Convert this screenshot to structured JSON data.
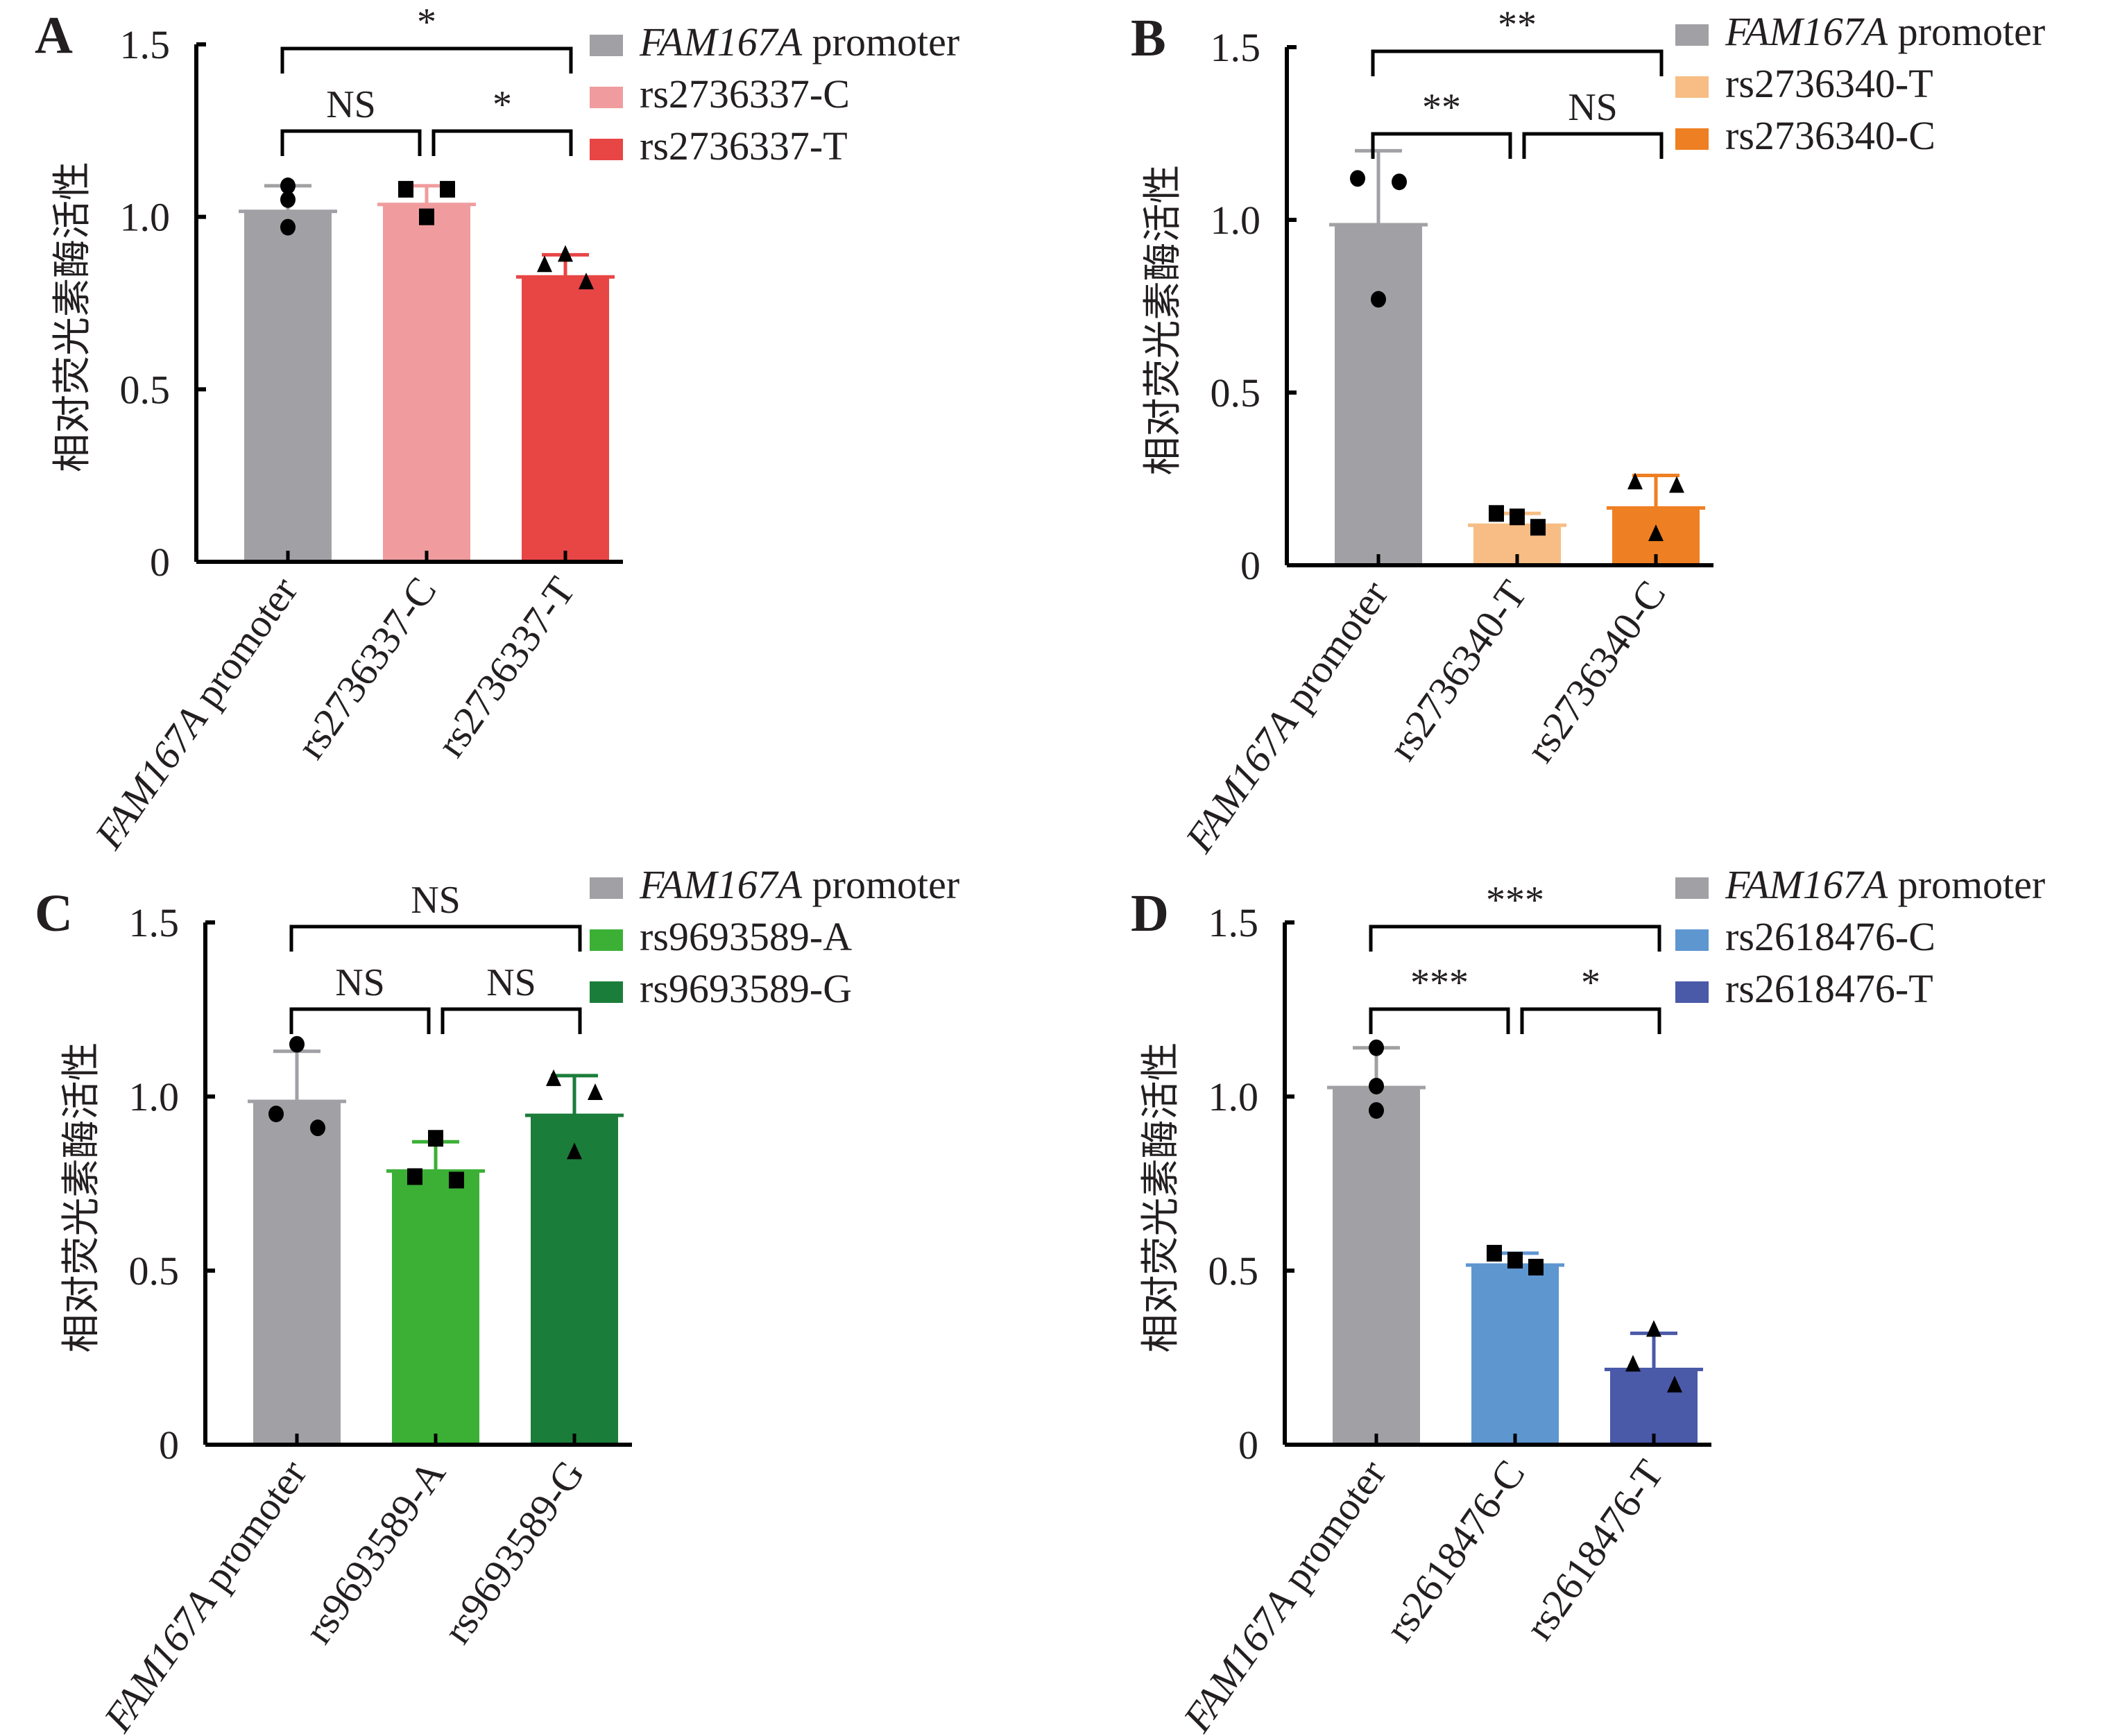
{
  "figure": {
    "y_axis_label": "相对荧光素酶活性"
  },
  "chart_data": [
    {
      "type": "bar",
      "panel": "A",
      "title": "",
      "ylabel": "相对荧光素酶活性",
      "xlabel": "",
      "ylim": [
        0,
        1.5
      ],
      "yticks": [
        "0",
        "0.5",
        "1.0",
        "1.5"
      ],
      "ytick_values": [
        0,
        0.5,
        1.0,
        1.5
      ],
      "legend_position": "top-right",
      "categories": [
        {
          "label_italic": "FAM167A",
          "label_rest": " promoter"
        },
        {
          "label_italic": "",
          "label_rest": "rs2736337-C"
        },
        {
          "label_italic": "",
          "label_rest": "rs2736337-T"
        }
      ],
      "colors": [
        "#a1a1a5",
        "#f09c9e",
        "#e84545"
      ],
      "values": [
        1.02,
        1.04,
        0.83
      ],
      "error_upper": [
        1.09,
        1.09,
        0.89
      ],
      "markers": [
        "circle",
        "square",
        "triangle"
      ],
      "points": [
        [
          1.09,
          1.05,
          0.97
        ],
        [
          1.08,
          1.08,
          1.0
        ],
        [
          0.89,
          0.86,
          0.81
        ]
      ],
      "point_offsets": [
        [
          0,
          0,
          0
        ],
        [
          -1,
          1,
          0
        ],
        [
          0,
          -1,
          1
        ]
      ],
      "comparisons": [
        {
          "from": 0,
          "to": 2,
          "label": "*",
          "level": 2
        },
        {
          "from": 0,
          "to": 1,
          "label": "NS",
          "level": 1
        },
        {
          "from": 1,
          "to": 2,
          "label": "*",
          "level": 1
        }
      ]
    },
    {
      "type": "bar",
      "panel": "B",
      "title": "",
      "ylabel": "相对荧光素酶活性",
      "xlabel": "",
      "ylim": [
        0,
        1.5
      ],
      "yticks": [
        "0",
        "0.5",
        "1.0",
        "1.5"
      ],
      "ytick_values": [
        0,
        0.5,
        1.0,
        1.5
      ],
      "legend_position": "top-right",
      "categories": [
        {
          "label_italic": "FAM167A",
          "label_rest": " promoter"
        },
        {
          "label_italic": "",
          "label_rest": "rs2736340-T"
        },
        {
          "label_italic": "",
          "label_rest": "rs2736340-C"
        }
      ],
      "colors": [
        "#a1a1a5",
        "#f7bd84",
        "#ee7f22"
      ],
      "values": [
        0.99,
        0.12,
        0.17
      ],
      "error_upper": [
        1.2,
        0.15,
        0.26
      ],
      "markers": [
        "circle",
        "square",
        "triangle"
      ],
      "points": [
        [
          1.12,
          1.11,
          0.77
        ],
        [
          0.15,
          0.14,
          0.11
        ],
        [
          0.24,
          0.23,
          0.09
        ]
      ],
      "point_offsets": [
        [
          -1,
          1,
          0
        ],
        [
          -1,
          0,
          1
        ],
        [
          -1,
          1,
          0
        ]
      ],
      "comparisons": [
        {
          "from": 0,
          "to": 2,
          "label": "**",
          "level": 2
        },
        {
          "from": 0,
          "to": 1,
          "label": "**",
          "level": 1
        },
        {
          "from": 1,
          "to": 2,
          "label": "NS",
          "level": 1
        }
      ]
    },
    {
      "type": "bar",
      "panel": "C",
      "title": "",
      "ylabel": "相对荧光素酶活性",
      "xlabel": "",
      "ylim": [
        0,
        1.5
      ],
      "yticks": [
        "0",
        "0.5",
        "1.0",
        "1.5"
      ],
      "ytick_values": [
        0,
        0.5,
        1.0,
        1.5
      ],
      "legend_position": "top-right",
      "categories": [
        {
          "label_italic": "FAM167A",
          "label_rest": " promoter"
        },
        {
          "label_italic": "",
          "label_rest": "rs9693589-A"
        },
        {
          "label_italic": "",
          "label_rest": "rs9693589-G"
        }
      ],
      "colors": [
        "#a1a1a5",
        "#3bb035",
        "#1b7d3a"
      ],
      "values": [
        0.99,
        0.79,
        0.95
      ],
      "error_upper": [
        1.13,
        0.87,
        1.06
      ],
      "markers": [
        "circle",
        "square",
        "triangle"
      ],
      "points": [
        [
          1.15,
          0.95,
          0.91
        ],
        [
          0.88,
          0.77,
          0.76
        ],
        [
          1.05,
          1.01,
          0.84
        ]
      ],
      "point_offsets": [
        [
          0,
          -1,
          1
        ],
        [
          0,
          -1,
          1
        ],
        [
          -1,
          1,
          0
        ]
      ],
      "comparisons": [
        {
          "from": 0,
          "to": 2,
          "label": "NS",
          "level": 2
        },
        {
          "from": 0,
          "to": 1,
          "label": "NS",
          "level": 1
        },
        {
          "from": 1,
          "to": 2,
          "label": "NS",
          "level": 1
        }
      ]
    },
    {
      "type": "bar",
      "panel": "D",
      "title": "",
      "ylabel": "相对荧光素酶活性",
      "xlabel": "",
      "ylim": [
        0,
        1.5
      ],
      "yticks": [
        "0",
        "0.5",
        "1.0",
        "1.5"
      ],
      "ytick_values": [
        0,
        0.5,
        1.0,
        1.5
      ],
      "legend_position": "top-right",
      "categories": [
        {
          "label_italic": "FAM167A",
          "label_rest": " promoter"
        },
        {
          "label_italic": "",
          "label_rest": "rs2618476-C"
        },
        {
          "label_italic": "",
          "label_rest": "rs2618476-T"
        }
      ],
      "colors": [
        "#a1a1a5",
        "#5e96d0",
        "#4a59a8"
      ],
      "values": [
        1.03,
        0.52,
        0.22
      ],
      "error_upper": [
        1.14,
        0.55,
        0.32
      ],
      "markers": [
        "circle",
        "square",
        "triangle"
      ],
      "points": [
        [
          1.14,
          1.03,
          0.96
        ],
        [
          0.55,
          0.53,
          0.51
        ],
        [
          0.33,
          0.23,
          0.17
        ]
      ],
      "point_offsets": [
        [
          0,
          0,
          0
        ],
        [
          -1,
          0,
          1
        ],
        [
          0,
          -1,
          1
        ]
      ],
      "comparisons": [
        {
          "from": 0,
          "to": 2,
          "label": "***",
          "level": 2
        },
        {
          "from": 0,
          "to": 1,
          "label": "***",
          "level": 1
        },
        {
          "from": 1,
          "to": 2,
          "label": "*",
          "level": 1
        }
      ]
    }
  ]
}
